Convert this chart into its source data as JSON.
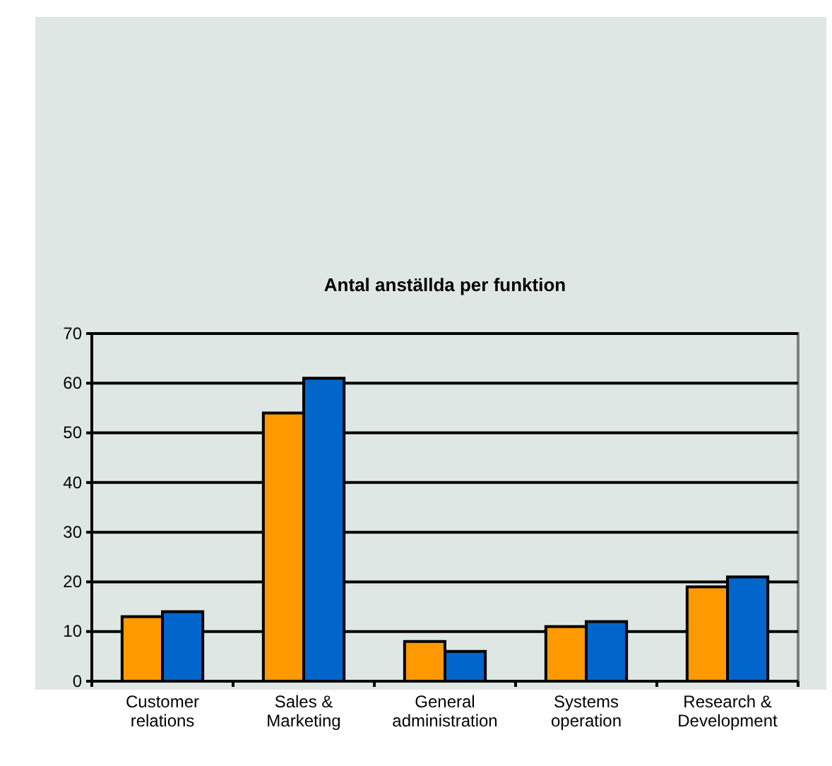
{
  "chart_data": {
    "type": "bar",
    "title": "Antal anställda per funktion",
    "categories": [
      "Customer relations",
      "Sales & Marketing",
      "General administration",
      "Systems operation",
      "Research & Development"
    ],
    "series": [
      {
        "color": "#ff9900",
        "values": [
          13,
          54,
          8,
          11,
          19
        ]
      },
      {
        "color": "#0066cc",
        "values": [
          14,
          61,
          6,
          12,
          21
        ]
      }
    ],
    "ylim": [
      0,
      70
    ],
    "yticks": [
      0,
      10,
      20,
      30,
      40,
      50,
      60,
      70
    ],
    "grid": "y"
  }
}
